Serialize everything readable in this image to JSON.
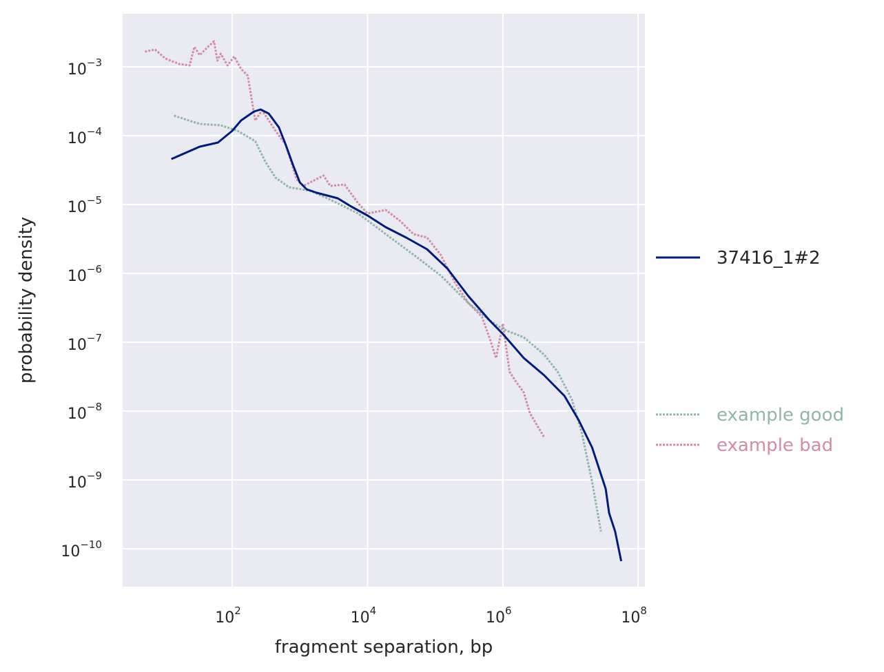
{
  "chart_data": {
    "type": "line",
    "title": "",
    "xlabel": "fragment separation, bp",
    "ylabel": "probability density",
    "x_scale": "log10",
    "y_scale": "log10",
    "xlim_log10": [
      0.38,
      8.1
    ],
    "ylim_log10": [
      -10.55,
      -2.23
    ],
    "xticks": [
      {
        "base": "10",
        "exp": "2",
        "v": 2
      },
      {
        "base": "10",
        "exp": "4",
        "v": 4
      },
      {
        "base": "10",
        "exp": "6",
        "v": 6
      },
      {
        "base": "10",
        "exp": "8",
        "v": 8
      }
    ],
    "yticks": [
      {
        "base": "10",
        "exp": "−3",
        "v": -3
      },
      {
        "base": "10",
        "exp": "−4",
        "v": -4
      },
      {
        "base": "10",
        "exp": "−5",
        "v": -5
      },
      {
        "base": "10",
        "exp": "−6",
        "v": -6
      },
      {
        "base": "10",
        "exp": "−7",
        "v": -7
      },
      {
        "base": "10",
        "exp": "−8",
        "v": -8
      },
      {
        "base": "10",
        "exp": "−9",
        "v": -9
      },
      {
        "base": "10",
        "exp": "−10",
        "v": -10
      }
    ],
    "grid": true,
    "legend_position": "right",
    "series": [
      {
        "name": "37416_1#2",
        "color": "#001c7f",
        "style": "solid",
        "x_log10": [
          1.1,
          1.52,
          1.79,
          2.0,
          2.13,
          2.32,
          2.42,
          2.54,
          2.69,
          2.79,
          2.9,
          3.0,
          3.1,
          3.25,
          3.56,
          3.76,
          4.0,
          4.27,
          4.57,
          4.88,
          5.18,
          5.49,
          5.8,
          6.0,
          6.31,
          6.61,
          6.91,
          7.12,
          7.32,
          7.52,
          7.57,
          7.66,
          7.75
        ],
        "y_log10": [
          -4.34,
          -4.16,
          -4.1,
          -3.93,
          -3.78,
          -3.65,
          -3.62,
          -3.68,
          -3.88,
          -4.13,
          -4.43,
          -4.68,
          -4.78,
          -4.83,
          -4.91,
          -5.03,
          -5.16,
          -5.33,
          -5.48,
          -5.65,
          -5.93,
          -6.33,
          -6.68,
          -6.88,
          -7.23,
          -7.48,
          -7.78,
          -8.13,
          -8.53,
          -9.13,
          -9.48,
          -9.75,
          -10.18
        ]
      },
      {
        "name": "example good",
        "color": "#8fb5ad",
        "style": "dotted",
        "x_log10": [
          1.14,
          1.52,
          1.83,
          2.08,
          2.34,
          2.49,
          2.64,
          2.84,
          3.15,
          3.45,
          3.86,
          4.27,
          4.68,
          5.08,
          5.49,
          5.8,
          6.0,
          6.31,
          6.61,
          6.81,
          7.02,
          7.17,
          7.32,
          7.45
        ],
        "y_log10": [
          -3.71,
          -3.83,
          -3.85,
          -3.93,
          -4.08,
          -4.38,
          -4.61,
          -4.75,
          -4.8,
          -4.93,
          -5.13,
          -5.43,
          -5.73,
          -6.03,
          -6.43,
          -6.68,
          -6.81,
          -6.93,
          -7.18,
          -7.43,
          -7.83,
          -8.33,
          -9.03,
          -9.75
        ]
      },
      {
        "name": "example bad",
        "color": "#d48ba5",
        "style": "dotted",
        "x_log10": [
          0.71,
          0.86,
          1.01,
          1.22,
          1.37,
          1.44,
          1.52,
          1.62,
          1.73,
          1.78,
          1.83,
          1.93,
          2.03,
          2.13,
          2.23,
          2.28,
          2.34,
          2.44,
          2.64,
          2.79,
          2.95,
          3.05,
          3.15,
          3.35,
          3.45,
          3.66,
          3.86,
          4.0,
          4.27,
          4.47,
          4.68,
          4.88,
          5.08,
          5.29,
          5.49,
          5.69,
          5.8,
          5.9,
          6.0,
          6.1,
          6.2,
          6.31,
          6.4,
          6.61
        ],
        "y_log10": [
          -2.78,
          -2.75,
          -2.88,
          -2.96,
          -2.98,
          -2.71,
          -2.83,
          -2.73,
          -2.63,
          -2.91,
          -2.81,
          -2.98,
          -2.85,
          -3.03,
          -3.13,
          -3.43,
          -3.78,
          -3.63,
          -3.93,
          -4.13,
          -4.63,
          -4.73,
          -4.68,
          -4.58,
          -4.73,
          -4.71,
          -4.98,
          -5.13,
          -5.08,
          -5.23,
          -5.43,
          -5.48,
          -5.73,
          -6.13,
          -6.43,
          -6.63,
          -6.93,
          -7.23,
          -6.73,
          -7.43,
          -7.58,
          -7.73,
          -8.03,
          -8.38
        ]
      }
    ]
  }
}
